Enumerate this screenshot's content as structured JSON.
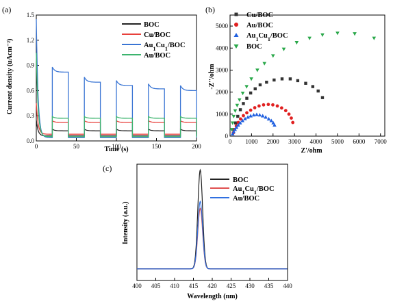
{
  "chart_data": [
    {
      "panel": "(a)",
      "type": "line",
      "xlabel": "Time (s)",
      "ylabel": "Current density (uAcm⁻²)",
      "xlim": [
        0,
        200
      ],
      "ylim": [
        0,
        1.5
      ],
      "xticks": [
        0,
        50,
        100,
        150,
        200
      ],
      "yticks": [
        0.0,
        0.3,
        0.6,
        0.9,
        1.2,
        1.5
      ],
      "yticklabels": [
        "0.0",
        "0.3",
        "0.6",
        "0.9",
        "1.2",
        "1.5"
      ],
      "legend_position": "top-right",
      "on_intervals": [
        [
          20,
          40
        ],
        [
          60,
          80
        ],
        [
          100,
          120
        ],
        [
          140,
          160
        ],
        [
          180,
          200
        ]
      ],
      "series": [
        {
          "name": "BOC",
          "color": "#222222",
          "off": 0.06,
          "on": 0.12,
          "spike": 0.25
        },
        {
          "name": "Cu/BOC",
          "color": "#e8413c",
          "off": 0.08,
          "on": 0.22,
          "spike": 0.45
        },
        {
          "name": "Au1Cu1/BOC",
          "color": "#3a75d4",
          "off": 0.04,
          "on_values": [
            0.82,
            0.7,
            0.66,
            0.62,
            0.6
          ],
          "spike": 1.45
        },
        {
          "name": "Au/BOC",
          "color": "#3cb46e",
          "off": 0.05,
          "on": 0.27,
          "spike": 1.05
        }
      ]
    },
    {
      "panel": "(b)",
      "type": "scatter",
      "xlabel": "Z'/ohm",
      "ylabel": "-Z''/ohm",
      "xlim": [
        0,
        7200
      ],
      "ylim": [
        0,
        5500
      ],
      "xticks": [
        0,
        1000,
        2000,
        3000,
        4000,
        5000,
        6000,
        7000
      ],
      "yticks": [
        0,
        1000,
        2000,
        3000,
        4000,
        5000
      ],
      "legend_position": "top-left",
      "series": [
        {
          "name": "Cu/BOC",
          "color": "#333333",
          "marker": "square",
          "x": [
            180,
            260,
            360,
            480,
            620,
            780,
            960,
            1170,
            1400,
            1700,
            2050,
            2420,
            2800,
            3150,
            3520,
            3850,
            4100,
            4300
          ],
          "y": [
            300,
            600,
            900,
            1200,
            1480,
            1720,
            1960,
            2150,
            2330,
            2450,
            2550,
            2600,
            2600,
            2520,
            2400,
            2250,
            2050,
            1750
          ]
        },
        {
          "name": "Au/BOC",
          "color": "#e02020",
          "marker": "circle",
          "x": [
            150,
            210,
            290,
            380,
            490,
            620,
            780,
            960,
            1150,
            1350,
            1560,
            1780,
            1990,
            2200,
            2400,
            2590,
            2740,
            2850,
            2920
          ],
          "y": [
            150,
            300,
            460,
            620,
            780,
            930,
            1060,
            1180,
            1290,
            1370,
            1420,
            1440,
            1420,
            1370,
            1280,
            1160,
            1000,
            820,
            620
          ]
        },
        {
          "name": "Au1Cu1/BOC",
          "color": "#2060e0",
          "marker": "triangle",
          "x": [
            120,
            170,
            230,
            300,
            380,
            470,
            580,
            700,
            830,
            960,
            1100,
            1240,
            1380,
            1520,
            1660,
            1800,
            1920,
            2010,
            2070
          ],
          "y": [
            100,
            200,
            300,
            400,
            500,
            600,
            700,
            790,
            860,
            920,
            960,
            980,
            960,
            920,
            860,
            780,
            700,
            600,
            500
          ]
        },
        {
          "name": "BOC",
          "color": "#2aa84a",
          "marker": "triangle-down",
          "x": [
            80,
            120,
            170,
            240,
            330,
            440,
            590,
            770,
            990,
            1270,
            1600,
            2000,
            2500,
            3100,
            3700,
            4300,
            5000,
            5800,
            6700
          ],
          "y": [
            300,
            600,
            900,
            1150,
            1400,
            1650,
            1950,
            2250,
            2600,
            3000,
            3300,
            3650,
            3950,
            4250,
            4450,
            4600,
            4680,
            4650,
            4450
          ]
        }
      ]
    },
    {
      "panel": "(c)",
      "type": "line",
      "xlabel": "Wavelength (nm)",
      "ylabel": "Intensity (a.u.)",
      "xlim": [
        400,
        440
      ],
      "ylim": [
        0,
        1
      ],
      "xticks": [
        400,
        405,
        410,
        415,
        420,
        425,
        430,
        435,
        440
      ],
      "legend_position": "top-right",
      "peak_center": 416.8,
      "peak_width": 0.9,
      "baseline": 0.1,
      "series": [
        {
          "name": "BOC",
          "color": "#222222",
          "peak": 0.95
        },
        {
          "name": "Au1Cu1/BOC",
          "color": "#e05050",
          "peak": 0.62
        },
        {
          "name": "Au/BOC",
          "color": "#3070e0",
          "peak": 0.68
        }
      ]
    }
  ],
  "labels": {
    "a": {
      "panel": "(a)",
      "xlabel": "Time (s)",
      "ylabel": "Current density (uAcm⁻²)",
      "legend": [
        "BOC",
        "Cu/BOC",
        "Au1Cu1/BOC",
        "Au/BOC"
      ]
    },
    "b": {
      "panel": "(b)",
      "xlabel": "Z'/ohm",
      "ylabel": "-Z''/ohm",
      "legend": [
        "Cu/BOC",
        "Au/BOC",
        "Au1Cu1/BOC",
        "BOC"
      ]
    },
    "c": {
      "panel": "(c)",
      "xlabel": "Wavelength (nm)",
      "ylabel": "Intensity (a.u.)",
      "legend": [
        "BOC",
        "Au1Cu1/BOC",
        "Au/BOC"
      ]
    }
  }
}
